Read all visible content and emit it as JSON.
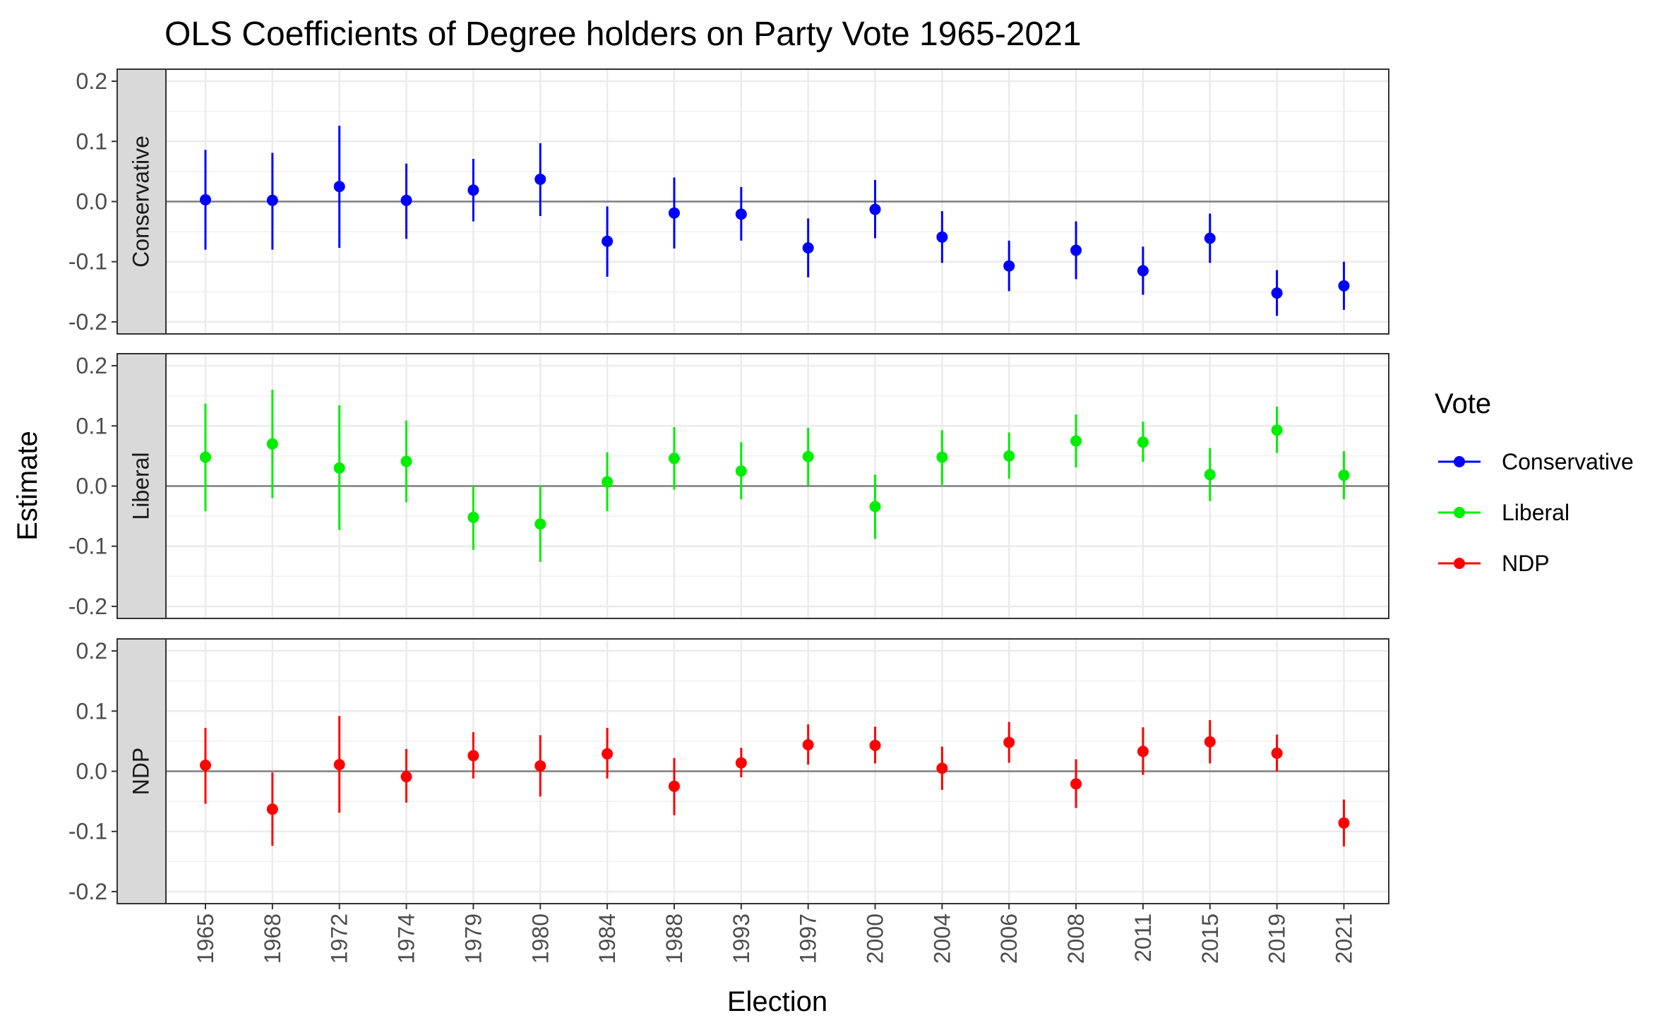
{
  "chart_data": {
    "type": "scatter",
    "subtype": "point-range, faceted",
    "title": "OLS Coefficients of Degree holders on Party Vote 1965-2021",
    "xlabel": "Election",
    "ylabel": "Estimate",
    "ylim": [
      -0.22,
      0.22
    ],
    "yticks": [
      -0.2,
      -0.1,
      0.0,
      0.1,
      0.2
    ],
    "ytick_labels": [
      "-0.2",
      "-0.1",
      "0.0",
      "0.1",
      "0.2"
    ],
    "categories": [
      "1965",
      "1968",
      "1972",
      "1974",
      "1979",
      "1980",
      "1984",
      "1988",
      "1993",
      "1997",
      "2000",
      "2004",
      "2006",
      "2008",
      "2011",
      "2015",
      "2019",
      "2021"
    ],
    "reference_line": 0,
    "grid": true,
    "legend": {
      "title": "Vote",
      "position": "right",
      "entries": [
        "Conservative",
        "Liberal",
        "NDP"
      ]
    },
    "series": [
      {
        "name": "Conservative",
        "color": "#0000ff",
        "values": [
          0.003,
          0.002,
          0.025,
          0.002,
          0.019,
          0.037,
          -0.066,
          -0.019,
          -0.021,
          -0.077,
          -0.013,
          -0.059,
          -0.107,
          -0.081,
          -0.115,
          -0.061,
          -0.152,
          -0.14
        ],
        "lower": [
          -0.08,
          -0.08,
          -0.077,
          -0.062,
          -0.033,
          -0.024,
          -0.125,
          -0.078,
          -0.065,
          -0.126,
          -0.061,
          -0.102,
          -0.149,
          -0.129,
          -0.155,
          -0.102,
          -0.19,
          -0.18
        ],
        "upper": [
          0.086,
          0.081,
          0.126,
          0.063,
          0.071,
          0.097,
          -0.008,
          0.04,
          0.024,
          -0.028,
          0.036,
          -0.016,
          -0.065,
          -0.033,
          -0.075,
          -0.02,
          -0.114,
          -0.1
        ]
      },
      {
        "name": "Liberal",
        "color": "#00ee00",
        "values": [
          0.048,
          0.07,
          0.03,
          0.041,
          -0.052,
          -0.063,
          0.007,
          0.046,
          0.025,
          0.049,
          -0.034,
          0.048,
          0.05,
          0.075,
          0.073,
          0.019,
          0.093,
          0.018
        ],
        "lower": [
          -0.042,
          -0.02,
          -0.073,
          -0.027,
          -0.106,
          -0.126,
          -0.042,
          -0.006,
          -0.022,
          0.001,
          -0.088,
          0.002,
          0.012,
          0.031,
          0.04,
          -0.025,
          0.055,
          -0.022
        ],
        "upper": [
          0.137,
          0.16,
          0.134,
          0.109,
          0.001,
          0.001,
          0.056,
          0.098,
          0.073,
          0.097,
          0.019,
          0.093,
          0.089,
          0.119,
          0.107,
          0.063,
          0.132,
          0.058
        ]
      },
      {
        "name": "NDP",
        "color": "#ff0000",
        "values": [
          0.01,
          -0.063,
          0.011,
          -0.009,
          0.026,
          0.009,
          0.029,
          -0.025,
          0.014,
          0.044,
          0.043,
          0.005,
          0.048,
          -0.021,
          0.033,
          0.049,
          0.03,
          -0.086
        ],
        "lower": [
          -0.054,
          -0.124,
          -0.069,
          -0.052,
          -0.012,
          -0.042,
          -0.012,
          -0.073,
          -0.01,
          0.011,
          0.013,
          -0.031,
          0.014,
          -0.061,
          -0.006,
          0.013,
          0.0,
          -0.125
        ],
        "upper": [
          0.072,
          -0.002,
          0.092,
          0.037,
          0.065,
          0.06,
          0.072,
          0.022,
          0.039,
          0.078,
          0.074,
          0.041,
          0.082,
          0.02,
          0.073,
          0.085,
          0.061,
          -0.047
        ]
      }
    ]
  }
}
